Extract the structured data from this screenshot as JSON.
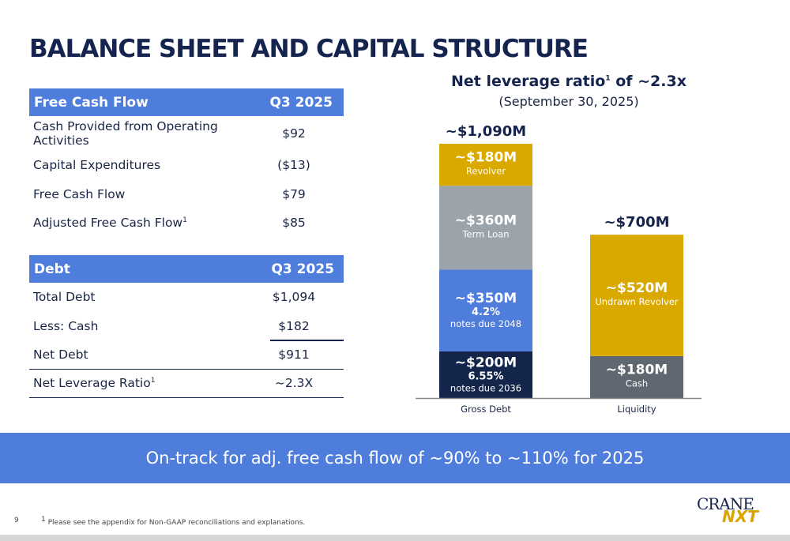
{
  "title": "BALANCE SHEET AND CAPITAL STRUCTURE",
  "fcf_table": {
    "header": [
      "Free Cash Flow",
      "Q3 2025"
    ],
    "rows": [
      {
        "label": "Cash Provided from Operating Activities",
        "value": "$92"
      },
      {
        "label": "Capital Expenditures",
        "value": "($13)"
      },
      {
        "label": "Free Cash Flow",
        "value": "$79"
      },
      {
        "label": "Adjusted Free Cash Flow",
        "sup": "1",
        "value": "$85"
      }
    ]
  },
  "debt_table": {
    "header": [
      "Debt",
      "Q3 2025"
    ],
    "rows": [
      {
        "label": "Total Debt",
        "value": "$1,094"
      },
      {
        "label": "Less: Cash",
        "value": "$182"
      },
      {
        "label": "Net Debt",
        "value": "$911"
      },
      {
        "label": "Net Leverage Ratio",
        "sup": "1",
        "value": "~2.3X"
      }
    ]
  },
  "chart_data": {
    "type": "bar",
    "stacked": true,
    "title": "Net leverage ratio",
    "title_sup": "1",
    "title_suffix": " of ~2.3x",
    "subtitle": "(September 30, 2025)",
    "categories": [
      "Gross Debt",
      "Liquidity"
    ],
    "totals": [
      "~$1,090M",
      "~$700M"
    ],
    "total_values": [
      1090,
      700
    ],
    "ylim": [
      0,
      1100
    ],
    "bars": [
      {
        "category": "Gross Debt",
        "segments": [
          {
            "value": 200,
            "label": "~$200M",
            "sub1": "6.55%",
            "sub2": "notes due 2036",
            "color": "#13254b"
          },
          {
            "value": 350,
            "label": "~$350M",
            "sub1": "4.2%",
            "sub2": "notes due 2048",
            "color": "#4f7ddc"
          },
          {
            "value": 360,
            "label": "~$360M",
            "sub1": "",
            "sub2": "Term Loan",
            "color": "#9ba3ab"
          },
          {
            "value": 180,
            "label": "~$180M",
            "sub1": "",
            "sub2": "Revolver",
            "color": "#d9a900"
          }
        ]
      },
      {
        "category": "Liquidity",
        "segments": [
          {
            "value": 180,
            "label": "~$180M",
            "sub1": "",
            "sub2": "Cash",
            "color": "#5f6770"
          },
          {
            "value": 520,
            "label": "~$520M",
            "sub1": "",
            "sub2": "Undrawn Revolver",
            "color": "#d9a900"
          }
        ]
      }
    ]
  },
  "banner": "On-track for adj. free cash flow of ~90% to ~110% for 2025",
  "page_number": "9",
  "footnote_sup": "1",
  "footnote": "Please see the appendix for Non-GAAP reconciliations and explanations.",
  "logo": {
    "line1": "CRANE",
    "line2": "NXT"
  }
}
